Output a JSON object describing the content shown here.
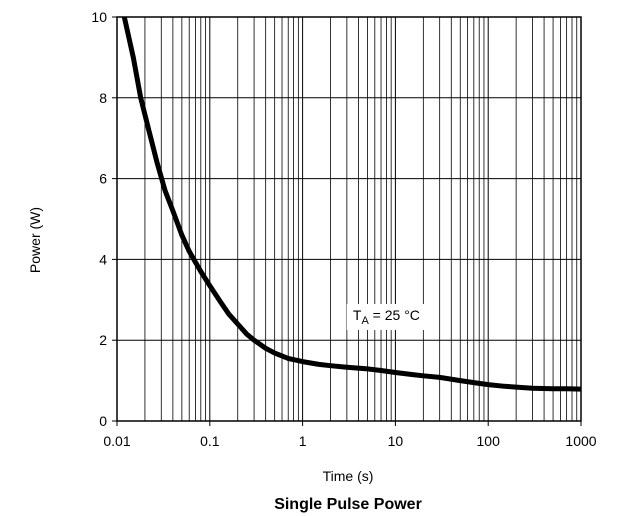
{
  "chart_data": {
    "type": "line",
    "title": "Single Pulse Power",
    "xlabel": "Time (s)",
    "ylabel": "Power  (W)",
    "x_scale": "log",
    "xlim": [
      0.01,
      1000
    ],
    "ylim": [
      0,
      10
    ],
    "grid": true,
    "x_ticks": [
      0.01,
      0.1,
      1,
      10,
      100,
      1000
    ],
    "x_tick_labels": [
      "0.01",
      "0.1",
      "1",
      "10",
      "100",
      "1000"
    ],
    "y_ticks": [
      0,
      2,
      4,
      6,
      8,
      10
    ],
    "y_tick_labels": [
      "0",
      "2",
      "4",
      "6",
      "8",
      "10"
    ],
    "annotation": {
      "prefix": "T",
      "subscript": "A",
      "suffix": " = 25 °C",
      "x": 8,
      "y": 2.5
    },
    "series": [
      {
        "color": "#000000",
        "x": [
          0.012,
          0.015,
          0.018,
          0.022,
          0.027,
          0.033,
          0.04,
          0.05,
          0.06,
          0.08,
          0.1,
          0.13,
          0.16,
          0.2,
          0.25,
          0.3,
          0.4,
          0.5,
          0.7,
          1,
          1.5,
          2,
          3,
          5,
          7,
          10,
          15,
          20,
          30,
          50,
          70,
          100,
          150,
          200,
          300,
          500,
          700,
          1000
        ],
        "y": [
          10.0,
          9.0,
          8.0,
          7.2,
          6.4,
          5.7,
          5.2,
          4.6,
          4.2,
          3.7,
          3.35,
          2.95,
          2.65,
          2.4,
          2.15,
          2.0,
          1.8,
          1.68,
          1.55,
          1.47,
          1.4,
          1.37,
          1.33,
          1.29,
          1.25,
          1.2,
          1.15,
          1.12,
          1.08,
          1.0,
          0.95,
          0.9,
          0.86,
          0.84,
          0.81,
          0.8,
          0.8,
          0.79
        ]
      }
    ]
  }
}
